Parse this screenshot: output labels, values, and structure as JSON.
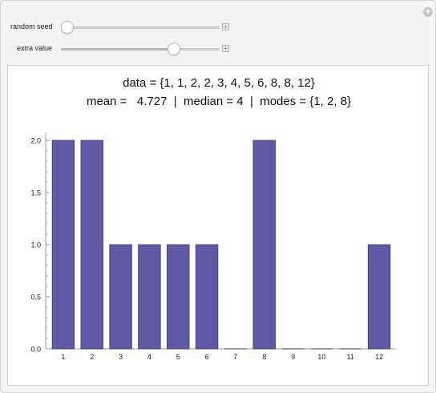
{
  "controls": {
    "random_seed": {
      "label": "random seed",
      "value_fraction": 0.04
    },
    "extra_value": {
      "label": "extra value",
      "value_fraction": 0.71
    }
  },
  "readout": {
    "data_line": "data = {1, 1, 2, 2, 3, 4, 5, 6, 8, 8, 12}",
    "stats_line": "mean =   4.727  |  median = 4  |  modes = {1, 2, 8}"
  },
  "chart_data": {
    "type": "bar",
    "categories": [
      "1",
      "2",
      "3",
      "4",
      "5",
      "6",
      "7",
      "8",
      "9",
      "10",
      "11",
      "12"
    ],
    "values": [
      2,
      2,
      1,
      1,
      1,
      1,
      0,
      2,
      0,
      0,
      0,
      1
    ],
    "ylim": [
      0,
      2
    ],
    "yticks": [
      "0.0",
      "0.5",
      "1.0",
      "1.5",
      "2.0"
    ],
    "bar_color": "#5e5aa6",
    "bar_edge_color": "#3c3a70",
    "grid": false
  }
}
